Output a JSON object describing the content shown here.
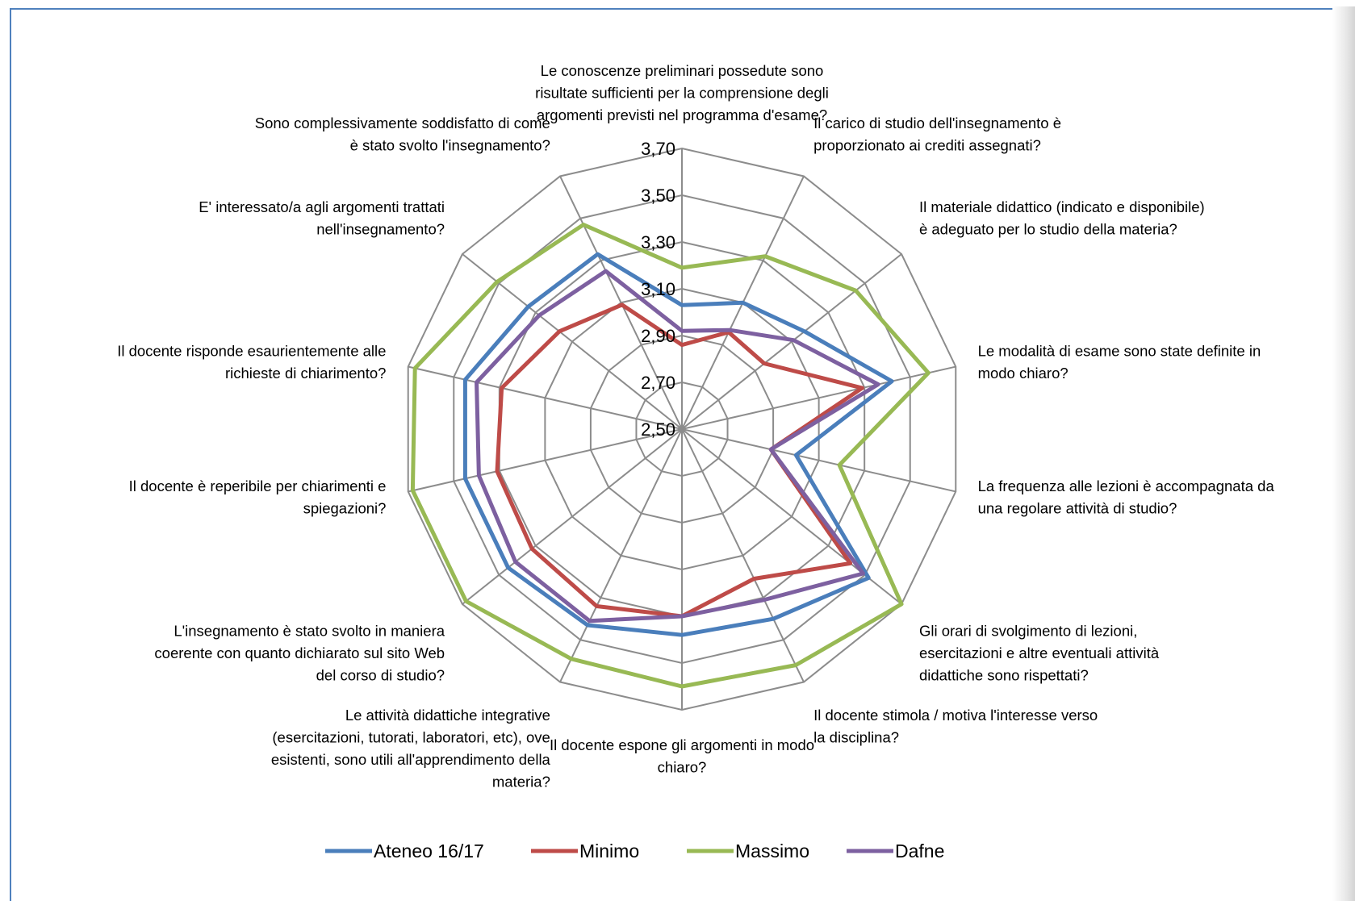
{
  "chart_data": {
    "type": "radar",
    "rmin": 2.5,
    "rmax": 3.7,
    "tick_labels": [
      "2,50",
      "2,70",
      "2,90",
      "3,10",
      "3,30",
      "3,50",
      "3,70"
    ],
    "tick_values": [
      2.5,
      2.7,
      2.9,
      3.1,
      3.3,
      3.5,
      3.7
    ],
    "categories": [
      [
        "Le conoscenze preliminari possedute sono",
        "risultate sufficienti per la comprensione degli",
        "argomenti previsti nel programma d'esame?"
      ],
      [
        "Il carico di studio dell'insegnamento è",
        "proporzionato ai crediti assegnati?"
      ],
      [
        "Il materiale didattico (indicato e disponibile)",
        "è adeguato per lo studio della materia?"
      ],
      [
        "Le modalità di esame sono state definite in",
        "modo chiaro?"
      ],
      [
        "La frequenza alle lezioni è accompagnata da",
        "una regolare attività di studio?"
      ],
      [
        "Gli orari di svolgimento di lezioni,",
        "esercitazioni e altre eventuali attività",
        "didattiche sono rispettati?"
      ],
      [
        "Il docente stimola / motiva l'interesse verso",
        "la disciplina?"
      ],
      [
        "Il docente espone gli argomenti in modo",
        "chiaro?"
      ],
      [
        "Le attività didattiche integrative",
        "(esercitazioni, tutorati, laboratori, etc), ove",
        "esistenti, sono utili all'apprendimento della",
        "materia?"
      ],
      [
        "L'insegnamento è stato svolto in maniera",
        "coerente con quanto dichiarato sul sito Web",
        "del corso di studio?"
      ],
      [
        "Il docente è reperibile per chiarimenti e",
        "spiegazioni?"
      ],
      [
        "Il docente risponde esaurientemente alle",
        "richieste di chiarimento?"
      ],
      [
        "E' interessato/a agli argomenti trattati",
        "nell'insegnamento?"
      ],
      [
        "Sono complessivamente soddisfatto di come",
        "è stato svolto l'insegnamento?"
      ]
    ],
    "series": [
      {
        "name": "Ateneo 16/17",
        "color": "#4a7ebb",
        "values": [
          3.03,
          3.1,
          3.17,
          3.42,
          3.0,
          3.52,
          3.4,
          3.38,
          3.43,
          3.45,
          3.45,
          3.45,
          3.34,
          3.33
        ]
      },
      {
        "name": "Minimo",
        "color": "#be4b48",
        "values": [
          2.86,
          2.96,
          2.95,
          3.29,
          2.89,
          3.42,
          3.21,
          3.3,
          3.34,
          3.32,
          3.31,
          3.29,
          3.17,
          3.09
        ]
      },
      {
        "name": "Massimo",
        "color": "#98b954",
        "values": [
          3.19,
          3.32,
          3.45,
          3.58,
          3.19,
          3.7,
          3.62,
          3.6,
          3.59,
          3.68,
          3.68,
          3.67,
          3.51,
          3.47
        ]
      },
      {
        "name": "Dafne",
        "color": "#7d60a0",
        "values": [
          2.92,
          2.97,
          3.11,
          3.36,
          2.89,
          3.49,
          3.31,
          3.3,
          3.41,
          3.41,
          3.39,
          3.4,
          3.28,
          3.25
        ]
      }
    ],
    "grid": true,
    "legend_position": "bottom"
  }
}
